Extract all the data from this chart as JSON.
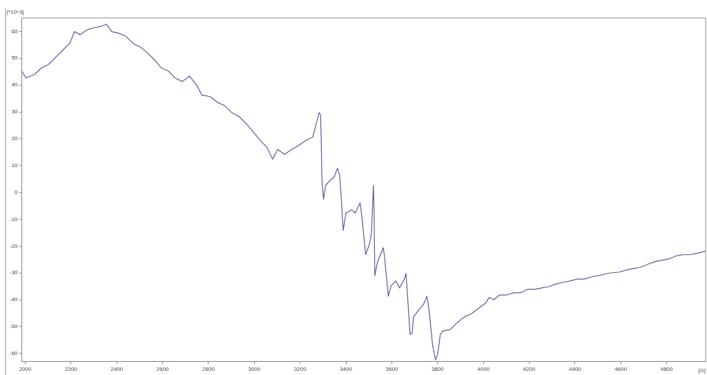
{
  "chart_data": {
    "type": "line",
    "xlabel": "[G]",
    "ylabel": "[*10^3]",
    "x": [
      1985,
      2003,
      2040,
      2071,
      2102,
      2132,
      2163,
      2194,
      2215,
      2240,
      2271,
      2302,
      2332,
      2354,
      2378,
      2409,
      2440,
      2471,
      2502,
      2532,
      2563,
      2594,
      2625,
      2655,
      2686,
      2717,
      2748,
      2772,
      2785,
      2809,
      2840,
      2871,
      2902,
      2932,
      2963,
      2994,
      3025,
      3055,
      3080,
      3102,
      3132,
      3163,
      3194,
      3225,
      3255,
      3271,
      3283,
      3289,
      3292,
      3295,
      3302,
      3311,
      3332,
      3348,
      3363,
      3372,
      3378,
      3388,
      3400,
      3425,
      3440,
      3462,
      3471,
      3486,
      3502,
      3511,
      3520,
      3523,
      3526,
      3538,
      3557,
      3563,
      3569,
      3585,
      3597,
      3618,
      3634,
      3655,
      3662,
      3671,
      3680,
      3689,
      3695,
      3717,
      3738,
      3754,
      3763,
      3778,
      3791,
      3800,
      3812,
      3825,
      3855,
      3886,
      3917,
      3948,
      3978,
      4009,
      4025,
      4046,
      4071,
      4102,
      4132,
      4163,
      4194,
      4225,
      4255,
      4286,
      4317,
      4348,
      4378,
      4409,
      4440,
      4471,
      4502,
      4532,
      4563,
      4594,
      4625,
      4655,
      4686,
      4717,
      4748,
      4778,
      4809,
      4840,
      4871,
      4902,
      4932,
      4969
    ],
    "series": [
      {
        "color": "#6a4f9a",
        "values": [
          45.2,
          42.6,
          43.9,
          46.4,
          47.7,
          50.3,
          52.9,
          55.5,
          59.9,
          58.8,
          60.6,
          61.4,
          61.9,
          62.7,
          59.9,
          59.3,
          58.1,
          55.5,
          54.2,
          52.1,
          49.5,
          46.4,
          45.2,
          42.6,
          41.3,
          43.3,
          40.0,
          36.1,
          36.1,
          35.6,
          33.5,
          32.3,
          29.7,
          28.4,
          25.8,
          22.7,
          19.4,
          16.8,
          12.4,
          16.0,
          14.2,
          16.0,
          17.5,
          19.4,
          20.6,
          25.8,
          29.7,
          28.9,
          19.4,
          5.2,
          -2.6,
          2.6,
          4.6,
          5.7,
          9.0,
          6.5,
          0,
          -14.2,
          -7.7,
          -6.5,
          -7.7,
          -3.9,
          -10.3,
          -23.2,
          -19.4,
          -15.5,
          2.6,
          -7.7,
          -31.0,
          -25.8,
          -21.9,
          -20.6,
          -24.5,
          -38.7,
          -34.8,
          -33.0,
          -35.6,
          -32.3,
          -30.2,
          -41.3,
          -52.9,
          -52.6,
          -46.4,
          -43.9,
          -41.8,
          -38.7,
          -43.9,
          -56.8,
          -62.4,
          -60.6,
          -52.9,
          -51.6,
          -51.1,
          -48.5,
          -46.4,
          -45.2,
          -43.3,
          -41.3,
          -39.2,
          -40.0,
          -38.2,
          -38.2,
          -37.4,
          -37.4,
          -36.1,
          -36.1,
          -35.6,
          -35.1,
          -34.1,
          -33.5,
          -33.0,
          -32.3,
          -32.3,
          -31.5,
          -31.0,
          -30.4,
          -29.9,
          -29.7,
          -28.9,
          -28.4,
          -27.9,
          -26.8,
          -25.8,
          -25.3,
          -24.8,
          -23.7,
          -23.2,
          -23.2,
          -22.7,
          -21.9
        ]
      }
    ],
    "xlim": [
      1985,
      4970
    ],
    "xticks": [
      2000,
      2200,
      2400,
      2600,
      2800,
      3000,
      3200,
      3400,
      3600,
      3800,
      4000,
      4200,
      4400,
      4600,
      4800
    ],
    "ylim": [
      -63,
      65
    ],
    "yticks": [
      -60,
      -50,
      -40,
      -30,
      -20,
      -10,
      0,
      10,
      20,
      30,
      40,
      50,
      60
    ],
    "grid": false,
    "legend": false,
    "marker": "none",
    "line_style": "solid"
  }
}
